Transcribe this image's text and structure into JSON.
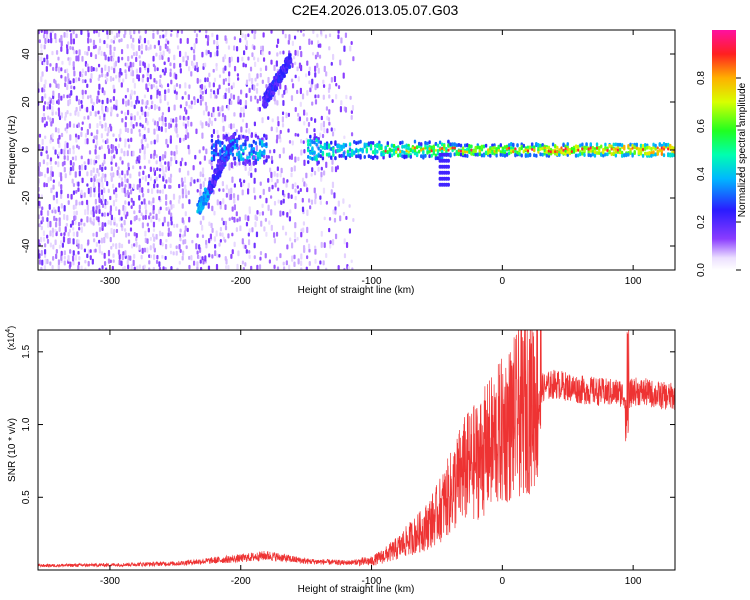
{
  "title": "C2E4.2026.013.05.07.G03",
  "chart_data": [
    {
      "type": "heatmap",
      "xlabel": "Height of straight line (km)",
      "ylabel": "Frequency (Hz)",
      "xlim": [
        -355,
        132
      ],
      "ylim": [
        -50,
        50
      ],
      "xticks": [
        -300,
        -200,
        -100,
        0,
        100
      ],
      "yticks": [
        -40,
        -20,
        0,
        20,
        40
      ],
      "colorbar": {
        "label": "Normalized spectral amplitude",
        "range": [
          0,
          1
        ],
        "ticks": [
          0.0,
          0.2,
          0.4,
          0.6,
          0.8
        ],
        "colormap": "rainbow (white-violet-blue-cyan-green-yellow-red-magenta)"
      },
      "features": {
        "main_signal_frequency_hz": 0,
        "noise_region_km": [
          -355,
          -115
        ],
        "doppler_track_1": {
          "from": [
            -232,
            -25
          ],
          "to": [
            -205,
            5
          ]
        },
        "doppler_track_2": {
          "from": [
            -182,
            20
          ],
          "to": [
            -162,
            38
          ]
        },
        "dip_near_km": -45
      }
    },
    {
      "type": "line",
      "xlabel": "Height of straight line (km)",
      "ylabel": "SNR (10 * v/v)",
      "y_scale_label": "(x10",
      "y_scale_exp": "4",
      "xlim": [
        -355,
        132
      ],
      "ylim": [
        0,
        16500
      ],
      "xticks": [
        -300,
        -200,
        -100,
        0,
        100
      ],
      "yticks": [
        5000,
        10000,
        15000
      ],
      "ytick_labels": [
        "0.5",
        "1.0",
        "1.5"
      ],
      "color": "#ee3333",
      "series": [
        {
          "x": [
            -355,
            -300,
            -250,
            -200,
            -180,
            -150,
            -120,
            -100,
            -90,
            -80,
            -70,
            -60,
            -50,
            -40,
            -30,
            -20,
            -10,
            0,
            10,
            20,
            30,
            40,
            50,
            60,
            70,
            80,
            90,
            95,
            100,
            110,
            120,
            132
          ],
          "values": [
            300,
            350,
            450,
            800,
            1000,
            600,
            500,
            600,
            1000,
            1500,
            2200,
            2800,
            3800,
            5200,
            6800,
            7500,
            8500,
            9500,
            10500,
            11500,
            12500,
            12800,
            12600,
            12400,
            12300,
            12200,
            12200,
            11800,
            12300,
            12200,
            12000,
            11900
          ]
        }
      ]
    }
  ]
}
